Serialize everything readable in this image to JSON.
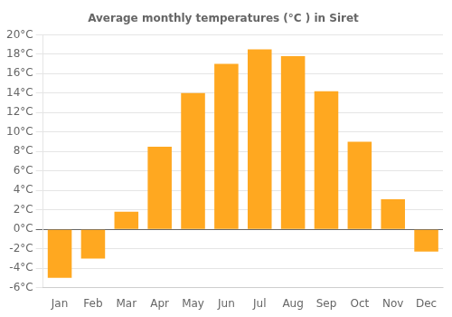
{
  "chart_data": {
    "type": "bar",
    "title": "Average monthly temperatures (°C ) in Siret",
    "categories": [
      "Jan",
      "Feb",
      "Mar",
      "Apr",
      "May",
      "Jun",
      "Jul",
      "Aug",
      "Sep",
      "Oct",
      "Nov",
      "Dec"
    ],
    "values": [
      -5.0,
      -3.0,
      1.8,
      8.5,
      14.0,
      17.0,
      18.5,
      17.8,
      14.2,
      9.0,
      3.1,
      -2.3
    ],
    "color": "#FFA820",
    "ylim": [
      -6,
      20
    ],
    "yticks": [
      {
        "value": -6,
        "label": "-6°C"
      },
      {
        "value": -4,
        "label": "-4°C"
      },
      {
        "value": -2,
        "label": "-2°C"
      },
      {
        "value": 0,
        "label": "0°C"
      },
      {
        "value": 2,
        "label": "2°C"
      },
      {
        "value": 4,
        "label": "4°C"
      },
      {
        "value": 6,
        "label": "6°C"
      },
      {
        "value": 8,
        "label": "8°C"
      },
      {
        "value": 10,
        "label": "10°C"
      },
      {
        "value": 12,
        "label": "12°C"
      },
      {
        "value": 14,
        "label": "14°C"
      },
      {
        "value": 16,
        "label": "16°C"
      },
      {
        "value": 18,
        "label": "18°C"
      },
      {
        "value": 20,
        "label": "20°C"
      }
    ],
    "grid": true
  }
}
